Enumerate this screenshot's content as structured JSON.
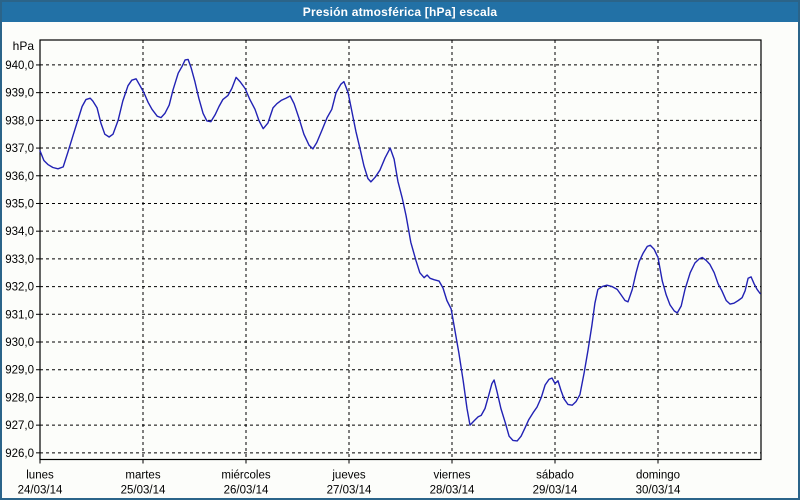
{
  "window": {
    "title": "Presión atmosférica [hPa] escala"
  },
  "colors": {
    "titlebar_bg": "#2271a6",
    "titlebar_text": "#ffffff",
    "frame_border": "#2b6489",
    "page_bg": "#fcfdfa",
    "plot_frame": "#000000",
    "grid": "#000000",
    "line": "#2222b4",
    "label_text": "#000000"
  },
  "chart_data": {
    "type": "line",
    "title": "Presión atmosférica [hPa] escala",
    "y_unit_label": "hPa",
    "ylabel": "",
    "xlabel": "",
    "grid": "dashed",
    "legend_position": "none",
    "ylim": [
      925.76,
      940.9
    ],
    "x_hours_total": 168,
    "y_ticks": [
      {
        "value": 940,
        "label": "940,0"
      },
      {
        "value": 939,
        "label": "939,0"
      },
      {
        "value": 938,
        "label": "938,0"
      },
      {
        "value": 937,
        "label": "937,0"
      },
      {
        "value": 936,
        "label": "936,0"
      },
      {
        "value": 935,
        "label": "935,0"
      },
      {
        "value": 934,
        "label": "934,0"
      },
      {
        "value": 933,
        "label": "933,0"
      },
      {
        "value": 932,
        "label": "932,0"
      },
      {
        "value": 931,
        "label": "931,0"
      },
      {
        "value": 930,
        "label": "930,0"
      },
      {
        "value": 929,
        "label": "929,0"
      },
      {
        "value": 928,
        "label": "928,0"
      },
      {
        "value": 927,
        "label": "927,0"
      },
      {
        "value": 926,
        "label": "926,0"
      }
    ],
    "x_days": [
      {
        "name": "lunes",
        "date": "24/03/14"
      },
      {
        "name": "martes",
        "date": "25/03/14"
      },
      {
        "name": "miércoles",
        "date": "26/03/14"
      },
      {
        "name": "jueves",
        "date": "27/03/14"
      },
      {
        "name": "viernes",
        "date": "28/03/14"
      },
      {
        "name": "sábado",
        "date": "29/03/14"
      },
      {
        "name": "domingo",
        "date": "30/03/14"
      }
    ],
    "series": [
      {
        "name": "Presión atmosférica",
        "unit": "hPa",
        "points": [
          [
            0,
            936.9
          ],
          [
            0.9,
            936.55
          ],
          [
            1.9,
            936.4
          ],
          [
            3,
            936.3
          ],
          [
            4.2,
            936.25
          ],
          [
            5.4,
            936.32
          ],
          [
            6.5,
            936.85
          ],
          [
            7.7,
            937.45
          ],
          [
            8.9,
            938.05
          ],
          [
            9.8,
            938.5
          ],
          [
            10.7,
            938.75
          ],
          [
            11.7,
            938.8
          ],
          [
            12.3,
            938.7
          ],
          [
            13.3,
            938.45
          ],
          [
            14.2,
            937.9
          ],
          [
            15.1,
            937.5
          ],
          [
            16.1,
            937.4
          ],
          [
            17,
            937.5
          ],
          [
            18.2,
            938
          ],
          [
            19.3,
            938.7
          ],
          [
            20.5,
            939.25
          ],
          [
            21.4,
            939.45
          ],
          [
            22.4,
            939.5
          ],
          [
            23.3,
            939.25
          ],
          [
            24.2,
            939
          ],
          [
            25.2,
            938.65
          ],
          [
            26.1,
            938.4
          ],
          [
            27.3,
            938.15
          ],
          [
            28.2,
            938.1
          ],
          [
            29.1,
            938.25
          ],
          [
            30.1,
            938.55
          ],
          [
            31,
            939.1
          ],
          [
            32.2,
            939.7
          ],
          [
            33.1,
            939.95
          ],
          [
            33.8,
            940.18
          ],
          [
            34.5,
            940.2
          ],
          [
            35.2,
            939.9
          ],
          [
            36.1,
            939.4
          ],
          [
            37,
            938.8
          ],
          [
            38,
            938.25
          ],
          [
            38.9,
            937.98
          ],
          [
            39.8,
            937.95
          ],
          [
            40.8,
            938.2
          ],
          [
            41.7,
            938.5
          ],
          [
            42.6,
            938.75
          ],
          [
            43.8,
            938.9
          ],
          [
            44.7,
            939.15
          ],
          [
            45.7,
            939.55
          ],
          [
            46.6,
            939.4
          ],
          [
            47.8,
            939.15
          ],
          [
            48.9,
            938.75
          ],
          [
            50.1,
            938.4
          ],
          [
            51,
            938
          ],
          [
            52,
            937.7
          ],
          [
            53.1,
            937.9
          ],
          [
            54.3,
            938.45
          ],
          [
            55.2,
            938.6
          ],
          [
            56.2,
            938.72
          ],
          [
            57.3,
            938.8
          ],
          [
            58.3,
            938.88
          ],
          [
            59.2,
            938.6
          ],
          [
            60.3,
            938.1
          ],
          [
            61.5,
            937.5
          ],
          [
            62.7,
            937.1
          ],
          [
            63.6,
            936.97
          ],
          [
            64.5,
            937.2
          ],
          [
            65.7,
            937.65
          ],
          [
            66.9,
            938.1
          ],
          [
            68,
            938.4
          ],
          [
            69,
            939
          ],
          [
            70.1,
            939.3
          ],
          [
            70.8,
            939.4
          ],
          [
            71.8,
            939
          ],
          [
            72.7,
            938.3
          ],
          [
            73.6,
            937.6
          ],
          [
            74.6,
            936.95
          ],
          [
            75.5,
            936.35
          ],
          [
            76.4,
            935.9
          ],
          [
            77.1,
            935.78
          ],
          [
            78.1,
            935.95
          ],
          [
            79.2,
            936.2
          ],
          [
            80.4,
            936.65
          ],
          [
            81.6,
            937
          ],
          [
            82.5,
            936.6
          ],
          [
            83.4,
            935.8
          ],
          [
            84.4,
            935.2
          ],
          [
            85.3,
            934.55
          ],
          [
            86.4,
            933.6
          ],
          [
            87.6,
            932.95
          ],
          [
            88.5,
            932.5
          ],
          [
            89.5,
            932.32
          ],
          [
            90.2,
            932.42
          ],
          [
            90.9,
            932.3
          ],
          [
            91.8,
            932.25
          ],
          [
            93,
            932.2
          ],
          [
            93.9,
            931.95
          ],
          [
            94.8,
            931.5
          ],
          [
            95.8,
            931.2
          ],
          [
            96.7,
            930.4
          ],
          [
            97.6,
            929.6
          ],
          [
            98.6,
            928.6
          ],
          [
            99.5,
            927.6
          ],
          [
            100.2,
            927
          ],
          [
            101.1,
            927.15
          ],
          [
            102.1,
            927.3
          ],
          [
            102.8,
            927.35
          ],
          [
            103.7,
            927.6
          ],
          [
            104.6,
            928.1
          ],
          [
            105.3,
            928.5
          ],
          [
            105.8,
            928.63
          ],
          [
            106.5,
            928.2
          ],
          [
            107.4,
            927.6
          ],
          [
            108.4,
            927.1
          ],
          [
            109.3,
            926.6
          ],
          [
            110.2,
            926.45
          ],
          [
            111.2,
            926.43
          ],
          [
            112.1,
            926.6
          ],
          [
            113,
            926.9
          ],
          [
            113.9,
            927.2
          ],
          [
            114.9,
            927.45
          ],
          [
            115.8,
            927.65
          ],
          [
            116.8,
            928
          ],
          [
            117.7,
            928.45
          ],
          [
            118.6,
            928.65
          ],
          [
            119.3,
            928.7
          ],
          [
            120,
            928.5
          ],
          [
            120.7,
            928.6
          ],
          [
            121.4,
            928.25
          ],
          [
            122.1,
            927.95
          ],
          [
            123,
            927.75
          ],
          [
            124,
            927.72
          ],
          [
            124.9,
            927.85
          ],
          [
            125.8,
            928.1
          ],
          [
            126.8,
            928.9
          ],
          [
            127.7,
            929.7
          ],
          [
            128.6,
            930.6
          ],
          [
            129.3,
            931.4
          ],
          [
            130,
            931.9
          ],
          [
            131,
            932
          ],
          [
            132.1,
            932.05
          ],
          [
            133.3,
            932
          ],
          [
            134.5,
            931.9
          ],
          [
            135.4,
            931.7
          ],
          [
            136.3,
            931.5
          ],
          [
            137,
            931.45
          ],
          [
            138,
            931.9
          ],
          [
            138.9,
            932.5
          ],
          [
            139.6,
            932.9
          ],
          [
            140.5,
            933.2
          ],
          [
            141.5,
            933.45
          ],
          [
            142.2,
            933.49
          ],
          [
            143.1,
            933.35
          ],
          [
            144,
            933.05
          ],
          [
            145,
            932.2
          ],
          [
            145.9,
            931.7
          ],
          [
            146.8,
            931.34
          ],
          [
            147.8,
            931.12
          ],
          [
            148.5,
            931.05
          ],
          [
            149.4,
            931.3
          ],
          [
            150.3,
            931.9
          ],
          [
            151.5,
            932.5
          ],
          [
            152.6,
            932.85
          ],
          [
            153.6,
            933
          ],
          [
            154.3,
            933.05
          ],
          [
            155.2,
            932.95
          ],
          [
            156.1,
            932.8
          ],
          [
            157.1,
            932.5
          ],
          [
            158,
            932.1
          ],
          [
            158.9,
            931.85
          ],
          [
            159.9,
            931.5
          ],
          [
            160.8,
            931.37
          ],
          [
            161.7,
            931.4
          ],
          [
            162.7,
            931.5
          ],
          [
            163.6,
            931.6
          ],
          [
            164.3,
            931.85
          ],
          [
            165,
            932.3
          ],
          [
            165.7,
            932.35
          ],
          [
            166.4,
            932.1
          ],
          [
            167.1,
            931.9
          ],
          [
            167.8,
            931.75
          ]
        ]
      }
    ]
  }
}
